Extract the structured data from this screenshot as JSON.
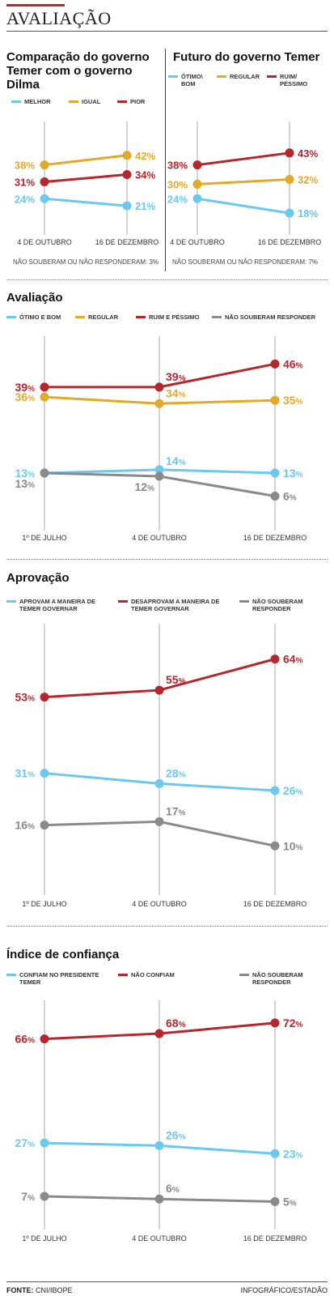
{
  "page": {
    "title": "AVALIAÇÃO",
    "source_label": "FONTE:",
    "source": "CNI/IBOPE",
    "credit": "INFOGRÁFICO/ESTADÃO"
  },
  "colors": {
    "blue": "#6cc8ec",
    "yellow": "#e1aa2a",
    "red": "#b5272c",
    "gray": "#8a8a8a",
    "accent": "#c1272d"
  },
  "chart_data": [
    {
      "type": "line",
      "title": "Comparação do governo Temer com o governo Dilma",
      "categories": [
        "4 DE OUTUBRO",
        "16 DE DEZEMBRO"
      ],
      "series": [
        {
          "name": "MELHOR",
          "values": [
            24,
            21
          ],
          "color": "#6cc8ec"
        },
        {
          "name": "IGUAL",
          "values": [
            38,
            42
          ],
          "color": "#e1aa2a"
        },
        {
          "name": "PIOR",
          "values": [
            31,
            34
          ],
          "color": "#b5272c"
        }
      ],
      "note": "NÃO SOUBERAM OU NÃO RESPONDERAM: 3%"
    },
    {
      "type": "line",
      "title": "Futuro do governo Temer",
      "categories": [
        "4 DE OUTUBRO",
        "16 DE DEZEMBRO"
      ],
      "series": [
        {
          "name": "ÓTIMO\\ BOM",
          "values": [
            24,
            18
          ],
          "color": "#6cc8ec"
        },
        {
          "name": "REGULAR",
          "values": [
            30,
            32
          ],
          "color": "#e1aa2a"
        },
        {
          "name": "RUIM/ PÉSSIMO",
          "values": [
            38,
            43
          ],
          "color": "#b5272c"
        }
      ],
      "note": "NÃO SOUBERAM OU NÃO RESPONDERAM: 7%"
    },
    {
      "type": "line",
      "title": "Avaliação",
      "categories": [
        "1º DE JULHO",
        "4 DE OUTUBRO",
        "16 DE DEZEMBRO"
      ],
      "series": [
        {
          "name": "ÓTIMO E BOM",
          "values": [
            13,
            14,
            13
          ],
          "color": "#6cc8ec"
        },
        {
          "name": "REGULAR",
          "values": [
            36,
            34,
            35
          ],
          "color": "#e1aa2a"
        },
        {
          "name": "RUIM E PÉSSIMO",
          "values": [
            39,
            39,
            46
          ],
          "color": "#b5272c"
        },
        {
          "name": "NÃO SOUBERAM RESPONDER",
          "values": [
            13,
            12,
            6
          ],
          "color": "#8a8a8a"
        }
      ]
    },
    {
      "type": "line",
      "title": "Aprovação",
      "categories": [
        "1º DE JULHO",
        "4 DE OUTUBRO",
        "16 DE DEZEMBRO"
      ],
      "series": [
        {
          "name": "APROVAM A MANEIRA DE TEMER GOVERNAR",
          "values": [
            31,
            28,
            26
          ],
          "color": "#6cc8ec"
        },
        {
          "name": "DESAPROVAM A MANEIRA DE TEMER GOVERNAR",
          "values": [
            53,
            55,
            64
          ],
          "color": "#b5272c"
        },
        {
          "name": "NÃO SOUBERAM RESPONDER",
          "values": [
            16,
            17,
            10
          ],
          "color": "#8a8a8a"
        }
      ]
    },
    {
      "type": "line",
      "title": "Índice de confiança",
      "categories": [
        "1º DE JULHO",
        "4 DE OUTUBRO",
        "16 DE DEZEMBRO"
      ],
      "series": [
        {
          "name": "CONFIAM NO PRESIDENTE TEMER",
          "values": [
            27,
            26,
            23
          ],
          "color": "#6cc8ec"
        },
        {
          "name": "NÃO CONFIAM",
          "values": [
            66,
            68,
            72
          ],
          "color": "#b5272c"
        },
        {
          "name": "NÃO SOUBERAM RESPONDER",
          "values": [
            7,
            6,
            5
          ],
          "color": "#8a8a8a"
        }
      ]
    }
  ]
}
